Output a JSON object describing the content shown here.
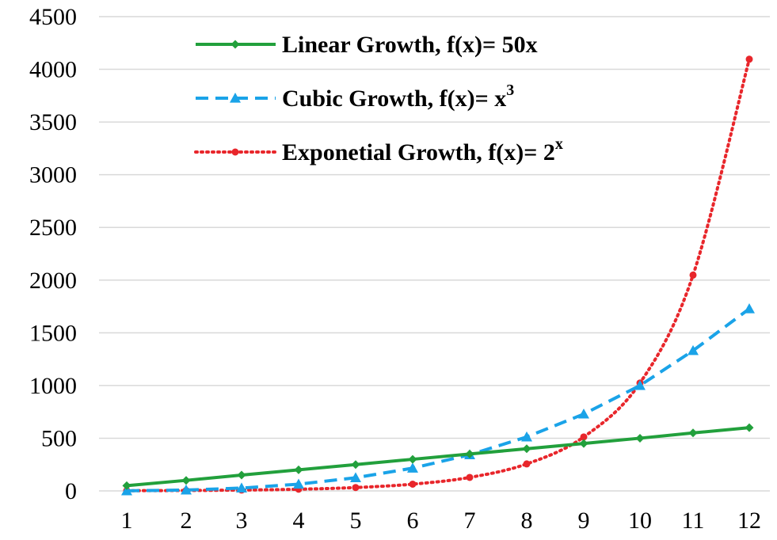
{
  "chart_data": {
    "type": "line",
    "x": [
      1,
      2,
      3,
      4,
      5,
      6,
      7,
      8,
      9,
      10,
      11,
      12
    ],
    "y_ticks": [
      0,
      500,
      1000,
      1500,
      2000,
      2500,
      3000,
      3500,
      4000,
      4500
    ],
    "ylim": [
      0,
      4500
    ],
    "grid": true,
    "legend_position": "top-center",
    "title": "",
    "xlabel": "",
    "ylabel": "",
    "series": [
      {
        "name": "Linear Growth, f(x)= 50x",
        "legend": {
          "main": "Linear Growth, f(x)= 50x",
          "sup": ""
        },
        "color": "#22a03c",
        "style": "solid",
        "marker": "diamond",
        "values": [
          50,
          100,
          150,
          200,
          250,
          300,
          350,
          400,
          450,
          500,
          550,
          600
        ]
      },
      {
        "name": "Cubic Growth, f(x)= x3",
        "legend": {
          "main": "Cubic Growth, f(x)= x",
          "sup": "3"
        },
        "color": "#1aa3e8",
        "style": "dashed",
        "marker": "triangle",
        "values": [
          1,
          8,
          27,
          64,
          125,
          216,
          343,
          512,
          729,
          1000,
          1331,
          1728
        ]
      },
      {
        "name": "Exponetial Growth, f(x)= 2x",
        "legend": {
          "main": "Exponetial Growth, f(x)= 2",
          "sup": "x"
        },
        "color": "#e8262b",
        "style": "dotted",
        "marker": "circle",
        "values": [
          2,
          4,
          8,
          16,
          32,
          64,
          128,
          256,
          512,
          1024,
          2048,
          4096
        ]
      }
    ]
  }
}
